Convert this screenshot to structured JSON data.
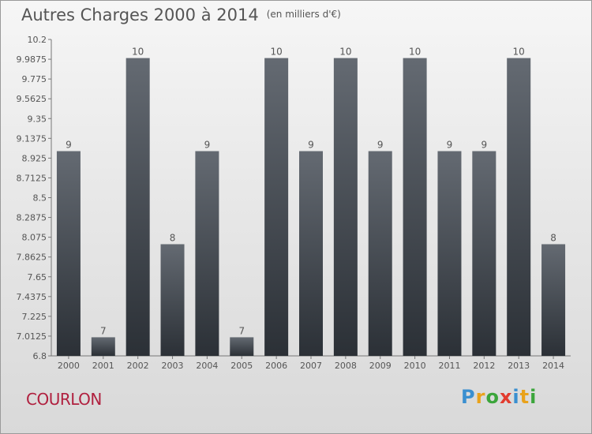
{
  "title": "Autres Charges 2000 à 2014",
  "subtitle": "(en milliers d'€)",
  "commune": "COURLON",
  "logo": {
    "text": "Proxiti",
    "letters": [
      {
        "ch": "P",
        "color": "#3a8fd0"
      },
      {
        "ch": "r",
        "color": "#e9a21b"
      },
      {
        "ch": "o",
        "color": "#3ba53b"
      },
      {
        "ch": "x",
        "color": "#e23c2f"
      },
      {
        "ch": "i",
        "color": "#3a8fd0"
      },
      {
        "ch": "t",
        "color": "#e9a21b"
      },
      {
        "ch": "i",
        "color": "#3ba53b"
      }
    ]
  },
  "colors": {
    "bar_top": "#646a72",
    "bar_bottom": "#2b3036",
    "text": "#555555",
    "accent": "#b0203f"
  },
  "chart_data": {
    "type": "bar",
    "title": "Autres Charges 2000 à 2014",
    "subtitle": "(en milliers d'€)",
    "xlabel": "",
    "ylabel": "",
    "categories": [
      "2000",
      "2001",
      "2002",
      "2003",
      "2004",
      "2005",
      "2006",
      "2007",
      "2008",
      "2009",
      "2010",
      "2011",
      "2012",
      "2013",
      "2014"
    ],
    "values": [
      9,
      7,
      10,
      8,
      9,
      7,
      10,
      9,
      10,
      9,
      10,
      9,
      9,
      10,
      8
    ],
    "value_labels": [
      "9",
      "7",
      "10",
      "8",
      "9",
      "7",
      "10",
      "9",
      "10",
      "9",
      "10",
      "9",
      "9",
      "10",
      "8"
    ],
    "ylim": [
      6.8,
      10.2
    ],
    "y_ticks": [
      6.8,
      7.0125,
      7.225,
      7.4375,
      7.65,
      7.8625,
      8.075,
      8.2875,
      8.5,
      8.7125,
      8.925,
      9.1375,
      9.35,
      9.5625,
      9.775,
      9.9875,
      10.2
    ],
    "y_tick_labels": [
      "6.8",
      "7.0125",
      "7.225",
      "7.4375",
      "7.65",
      "7.8625",
      "8.075",
      "8.2875",
      "8.5",
      "8.7125",
      "8.925",
      "9.1375",
      "9.35",
      "9.5625",
      "9.775",
      "9.9875",
      "10.2"
    ],
    "grid": false,
    "legend": "none"
  }
}
